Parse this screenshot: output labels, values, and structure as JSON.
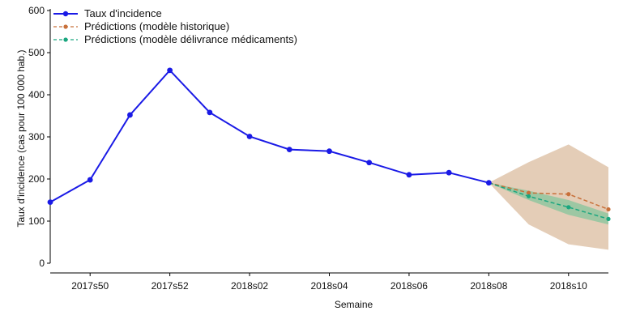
{
  "chart_data": {
    "type": "line",
    "title": "",
    "xlabel": "Semaine",
    "ylabel": "Taux d'incidence (cas pour 100 000 hab.)",
    "ylim": [
      0,
      600
    ],
    "yticks": [
      0,
      100,
      200,
      300,
      400,
      500,
      600
    ],
    "xticks": [
      "2017s50",
      "2017s52",
      "2018s02",
      "2018s04",
      "2018s06",
      "2018s08",
      "2018s10"
    ],
    "legend_position": "top-left",
    "grid": false,
    "series": [
      {
        "name": "Taux d'incidence",
        "color": "#1a1ae6",
        "style": "solid",
        "x": [
          "2017s49",
          "2017s50",
          "2017s51",
          "2017s52",
          "2018s01",
          "2018s02",
          "2018s03",
          "2018s04",
          "2018s05",
          "2018s06",
          "2018s07",
          "2018s08"
        ],
        "values": [
          145,
          198,
          352,
          458,
          358,
          301,
          270,
          266,
          239,
          210,
          215,
          191
        ]
      },
      {
        "name": "Prédictions (modèle historique)",
        "color": "#c8703a",
        "band_color": "#d9b899",
        "style": "dashed",
        "x": [
          "2018s08",
          "2018s09",
          "2018s10",
          "2018s11"
        ],
        "values": [
          191,
          167,
          164,
          128
        ],
        "lower": [
          191,
          92,
          45,
          32
        ],
        "upper": [
          191,
          240,
          282,
          228
        ]
      },
      {
        "name": "Prédictions (modèle délivrance médicaments)",
        "color": "#1aa67f",
        "band_color": "#7fc49a",
        "style": "dashed",
        "x": [
          "2018s08",
          "2018s09",
          "2018s10",
          "2018s11"
        ],
        "values": [
          191,
          159,
          133,
          105
        ],
        "lower": [
          191,
          150,
          115,
          92
        ],
        "upper": [
          191,
          172,
          150,
          118
        ]
      }
    ]
  }
}
